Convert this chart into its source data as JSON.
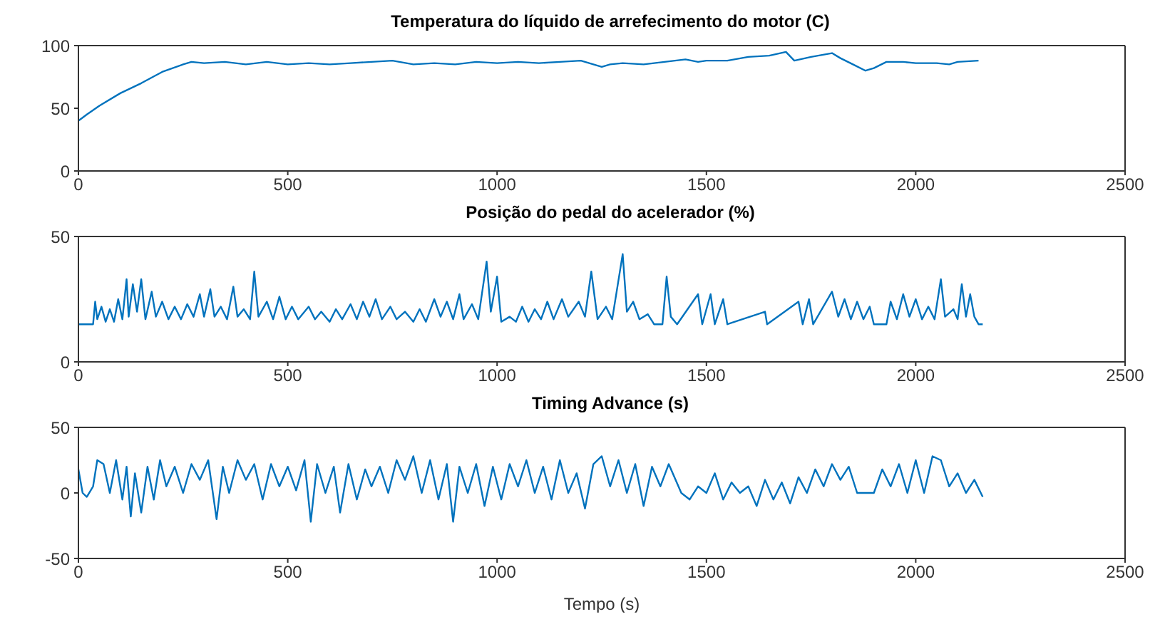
{
  "chart_data": [
    {
      "type": "line",
      "title": "Temperatura do líquido de arrefecimento do motor (C)",
      "xlim": [
        0,
        2500
      ],
      "xticks": [
        0,
        500,
        1000,
        1500,
        2000,
        2500
      ],
      "ylim": [
        0,
        100
      ],
      "yticks": [
        0,
        50,
        100
      ],
      "grid": false,
      "legend": false,
      "marker": "none",
      "line_style": "solid",
      "series": [
        {
          "color": "#0072bd",
          "x": [
            0,
            20,
            50,
            100,
            150,
            200,
            250,
            270,
            300,
            350,
            400,
            450,
            500,
            550,
            600,
            650,
            700,
            750,
            800,
            850,
            900,
            950,
            1000,
            1050,
            1100,
            1150,
            1200,
            1250,
            1270,
            1300,
            1350,
            1400,
            1450,
            1480,
            1500,
            1550,
            1600,
            1650,
            1690,
            1710,
            1750,
            1800,
            1820,
            1850,
            1880,
            1900,
            1930,
            1970,
            2000,
            2050,
            2080,
            2100,
            2150
          ],
          "values": [
            40,
            45,
            52,
            62,
            70,
            79,
            85,
            87,
            86,
            87,
            85,
            87,
            85,
            86,
            85,
            86,
            87,
            88,
            85,
            86,
            85,
            87,
            86,
            87,
            86,
            87,
            88,
            83,
            85,
            86,
            85,
            87,
            89,
            87,
            88,
            88,
            91,
            92,
            95,
            88,
            91,
            94,
            90,
            85,
            80,
            82,
            87,
            87,
            86,
            86,
            85,
            87,
            88
          ]
        }
      ]
    },
    {
      "type": "line",
      "title": "Posição do pedal do acelerador (%)",
      "xlim": [
        0,
        2500
      ],
      "xticks": [
        0,
        500,
        1000,
        1500,
        2000,
        2500
      ],
      "ylim": [
        0,
        50
      ],
      "yticks": [
        0,
        50
      ],
      "grid": false,
      "legend": false,
      "marker": "none",
      "line_style": "solid",
      "series": [
        {
          "color": "#0072bd",
          "x": [
            0,
            35,
            40,
            45,
            55,
            65,
            75,
            85,
            95,
            105,
            115,
            120,
            130,
            140,
            150,
            160,
            175,
            185,
            200,
            215,
            230,
            245,
            260,
            275,
            290,
            300,
            315,
            325,
            340,
            355,
            370,
            380,
            395,
            410,
            420,
            430,
            450,
            465,
            480,
            495,
            510,
            525,
            550,
            565,
            580,
            600,
            615,
            630,
            650,
            665,
            680,
            695,
            710,
            725,
            745,
            760,
            780,
            800,
            815,
            830,
            850,
            865,
            880,
            895,
            910,
            920,
            940,
            955,
            975,
            985,
            1000,
            1010,
            1030,
            1045,
            1060,
            1075,
            1090,
            1105,
            1120,
            1135,
            1155,
            1170,
            1195,
            1210,
            1225,
            1240,
            1260,
            1275,
            1300,
            1310,
            1325,
            1340,
            1360,
            1375,
            1395,
            1405,
            1415,
            1430,
            1480,
            1490,
            1510,
            1520,
            1540,
            1550,
            1640,
            1645,
            1720,
            1730,
            1745,
            1755,
            1800,
            1815,
            1830,
            1845,
            1860,
            1875,
            1890,
            1900,
            1930,
            1940,
            1955,
            1970,
            1985,
            2000,
            2015,
            2030,
            2045,
            2060,
            2070,
            2090,
            2100,
            2110,
            2120,
            2130,
            2140,
            2150,
            2160
          ],
          "values": [
            15,
            15,
            24,
            17,
            22,
            16,
            21,
            16,
            25,
            17,
            33,
            18,
            31,
            20,
            33,
            17,
            28,
            18,
            24,
            17,
            22,
            17,
            23,
            18,
            27,
            18,
            29,
            18,
            22,
            17,
            30,
            18,
            21,
            17,
            36,
            18,
            24,
            17,
            26,
            17,
            22,
            17,
            22,
            17,
            20,
            16,
            21,
            17,
            23,
            17,
            24,
            18,
            25,
            17,
            22,
            17,
            20,
            16,
            21,
            16,
            25,
            18,
            24,
            17,
            27,
            17,
            23,
            17,
            40,
            20,
            34,
            16,
            18,
            16,
            22,
            16,
            21,
            17,
            24,
            17,
            25,
            18,
            24,
            18,
            36,
            17,
            22,
            17,
            43,
            20,
            24,
            17,
            19,
            15,
            15,
            34,
            18,
            15,
            27,
            15,
            27,
            15,
            25,
            15,
            20,
            15,
            24,
            15,
            25,
            15,
            28,
            18,
            25,
            17,
            24,
            17,
            22,
            15,
            15,
            24,
            17,
            27,
            18,
            25,
            17,
            22,
            17,
            33,
            18,
            21,
            17,
            31,
            18,
            27,
            18,
            15,
            15
          ]
        }
      ]
    },
    {
      "type": "line",
      "title": "Timing Advance (s)",
      "xlabel": "Tempo (s)",
      "xlim": [
        0,
        2500
      ],
      "xticks": [
        0,
        500,
        1000,
        1500,
        2000,
        2500
      ],
      "ylim": [
        -50,
        50
      ],
      "yticks": [
        -50,
        0,
        50
      ],
      "grid": false,
      "legend": false,
      "marker": "none",
      "line_style": "solid",
      "series": [
        {
          "color": "#0072bd",
          "x": [
            0,
            10,
            20,
            35,
            45,
            60,
            75,
            90,
            105,
            115,
            125,
            135,
            150,
            165,
            180,
            195,
            210,
            230,
            250,
            270,
            290,
            310,
            330,
            345,
            360,
            380,
            400,
            420,
            440,
            460,
            480,
            500,
            520,
            540,
            555,
            570,
            590,
            610,
            625,
            645,
            665,
            685,
            700,
            720,
            740,
            760,
            780,
            800,
            820,
            840,
            860,
            880,
            895,
            910,
            930,
            950,
            970,
            990,
            1010,
            1030,
            1050,
            1070,
            1090,
            1110,
            1130,
            1150,
            1170,
            1190,
            1210,
            1230,
            1250,
            1270,
            1290,
            1310,
            1330,
            1350,
            1370,
            1390,
            1410,
            1440,
            1460,
            1480,
            1500,
            1520,
            1540,
            1560,
            1580,
            1600,
            1620,
            1640,
            1660,
            1680,
            1700,
            1720,
            1740,
            1760,
            1780,
            1800,
            1820,
            1840,
            1860,
            1880,
            1900,
            1920,
            1940,
            1960,
            1980,
            2000,
            2020,
            2040,
            2060,
            2080,
            2100,
            2120,
            2140,
            2160
          ],
          "values": [
            18,
            0,
            -3,
            5,
            25,
            22,
            0,
            25,
            -5,
            20,
            -18,
            15,
            -15,
            20,
            -5,
            25,
            5,
            20,
            0,
            22,
            10,
            25,
            -20,
            20,
            0,
            25,
            10,
            22,
            -5,
            22,
            5,
            20,
            2,
            25,
            -22,
            22,
            0,
            20,
            -15,
            22,
            -5,
            18,
            5,
            20,
            0,
            25,
            10,
            28,
            0,
            25,
            -5,
            22,
            -22,
            20,
            0,
            22,
            -10,
            20,
            -5,
            22,
            5,
            25,
            0,
            20,
            -5,
            25,
            0,
            15,
            -12,
            22,
            28,
            5,
            25,
            0,
            22,
            -10,
            20,
            5,
            22,
            0,
            -5,
            5,
            0,
            15,
            -5,
            8,
            0,
            5,
            -10,
            10,
            -5,
            8,
            -8,
            12,
            0,
            18,
            5,
            22,
            10,
            20,
            0,
            0,
            0,
            18,
            5,
            22,
            0,
            25,
            0,
            28,
            25,
            5,
            15,
            0,
            10,
            -3
          ]
        }
      ]
    }
  ]
}
